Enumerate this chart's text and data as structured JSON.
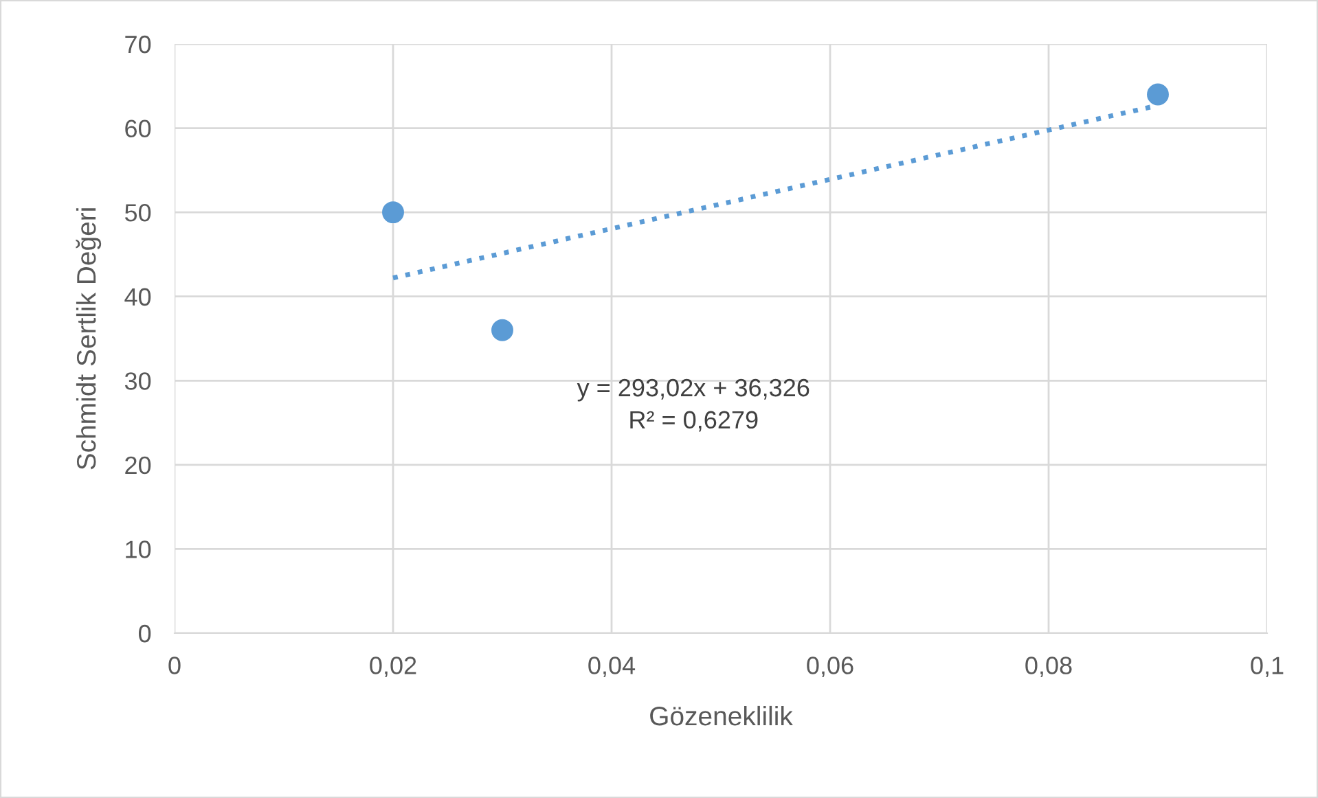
{
  "chart_data": {
    "type": "scatter",
    "xlabel": "Gözeneklilik",
    "ylabel": "Schmidt Sertlik Değeri",
    "series": [
      {
        "color": "#5b9bd5",
        "x": [
          0.02,
          0.03,
          0.09
        ],
        "values": [
          50,
          36,
          64
        ],
        "marker": "circle"
      },
      {
        "type": "line",
        "color": "#5b9bd5",
        "x": [
          0.02,
          0.09
        ],
        "values": [
          42.2,
          62.7
        ],
        "line_style": "dotted",
        "marker": "none"
      }
    ],
    "annotations": [
      "y = 293,02x + 36,326\nR² = 0,6279"
    ],
    "xlim": [
      0,
      0.1
    ],
    "xticks": [
      {
        "value": 0,
        "label": "0"
      },
      {
        "value": 0.02,
        "label": "0,02"
      },
      {
        "value": 0.04,
        "label": "0,04"
      },
      {
        "value": 0.06,
        "label": "0,06"
      },
      {
        "value": 0.08,
        "label": "0,08"
      },
      {
        "value": 0.1,
        "label": "0,1"
      }
    ],
    "ylim": [
      0,
      70
    ],
    "yticks": [
      0,
      10,
      20,
      30,
      40,
      50,
      60,
      70
    ],
    "grid": true,
    "legend": false
  }
}
